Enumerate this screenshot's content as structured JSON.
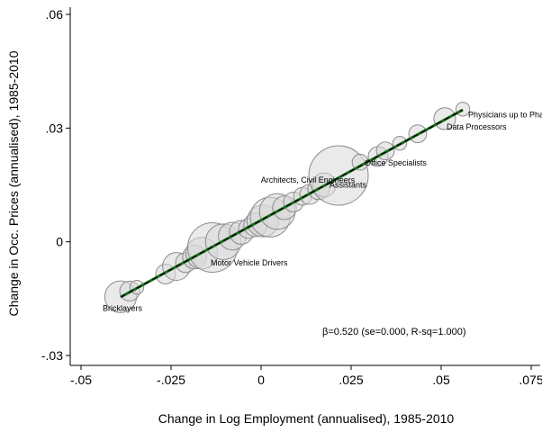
{
  "chart_data": {
    "type": "scatter",
    "title": "",
    "xlabel": "Change in Log Employment (annualised), 1985-2010",
    "ylabel": "Change in Occ. Prices (annualised), 1985-2010",
    "xlim": [
      -0.05,
      0.075
    ],
    "ylim": [
      -0.03,
      0.06
    ],
    "x_ticks": [
      -0.05,
      -0.025,
      0,
      0.025,
      0.05,
      0.075
    ],
    "x_tick_labels": [
      "-.05",
      "-.025",
      "0",
      ".025",
      ".05",
      ".075"
    ],
    "y_ticks": [
      -0.03,
      0,
      0.03,
      0.06
    ],
    "y_tick_labels": [
      "-.03",
      "0",
      ".03",
      ".06"
    ],
    "grid": false,
    "colors": {
      "marker_fill": "#d9d9d9",
      "marker_edge": "#8c8c8c",
      "fit_line": "#1a6b1a",
      "fit_line_dash": "#000000"
    },
    "fit_line": {
      "slope": 0.52,
      "intercept": 0.0057,
      "x_range": [
        -0.039,
        0.056
      ]
    },
    "annotation": "β=0.520 (se=0.000, R-sq=1.000)",
    "points": [
      {
        "x": -0.039,
        "y": -0.0145,
        "s": 1.6,
        "label": "Bricklayers"
      },
      {
        "x": -0.0365,
        "y": -0.013,
        "s": 1.0
      },
      {
        "x": -0.0345,
        "y": -0.012,
        "s": 0.7
      },
      {
        "x": -0.0265,
        "y": -0.0085,
        "s": 1.0
      },
      {
        "x": -0.0235,
        "y": -0.0065,
        "s": 1.4
      },
      {
        "x": -0.021,
        "y": -0.0055,
        "s": 1.0
      },
      {
        "x": -0.0185,
        "y": -0.004,
        "s": 1.2
      },
      {
        "x": -0.0165,
        "y": -0.003,
        "s": 1.6
      },
      {
        "x": -0.0135,
        "y": -0.0015,
        "s": 2.5,
        "label": "Motor Vehicle Drivers"
      },
      {
        "x": -0.0105,
        "y": 0.0,
        "s": 1.8
      },
      {
        "x": -0.008,
        "y": 0.0015,
        "s": 1.4
      },
      {
        "x": -0.0055,
        "y": 0.0025,
        "s": 1.2
      },
      {
        "x": -0.0035,
        "y": 0.0035,
        "s": 1.0
      },
      {
        "x": -0.0015,
        "y": 0.0045,
        "s": 1.2
      },
      {
        "x": 0.0005,
        "y": 0.0055,
        "s": 1.6
      },
      {
        "x": 0.0025,
        "y": 0.0065,
        "s": 2.0
      },
      {
        "x": 0.0045,
        "y": 0.008,
        "s": 1.8
      },
      {
        "x": 0.0065,
        "y": 0.009,
        "s": 1.2
      },
      {
        "x": 0.009,
        "y": 0.0105,
        "s": 1.0
      },
      {
        "x": 0.0115,
        "y": 0.012,
        "s": 0.9,
        "label": "Architects, Civil Engineers"
      },
      {
        "x": 0.0135,
        "y": 0.0125,
        "s": 1.0
      },
      {
        "x": 0.016,
        "y": 0.014,
        "s": 1.1
      },
      {
        "x": 0.0175,
        "y": 0.015,
        "s": 1.2,
        "label": "Assistants"
      },
      {
        "x": 0.0215,
        "y": 0.0175,
        "s": 3.0
      },
      {
        "x": 0.0275,
        "y": 0.021,
        "s": 0.8,
        "label": "Office Specialists"
      },
      {
        "x": 0.0325,
        "y": 0.0225,
        "s": 1.0
      },
      {
        "x": 0.0345,
        "y": 0.024,
        "s": 0.9
      },
      {
        "x": 0.0385,
        "y": 0.026,
        "s": 0.7
      },
      {
        "x": 0.0435,
        "y": 0.0285,
        "s": 0.9
      },
      {
        "x": 0.051,
        "y": 0.0325,
        "s": 1.1,
        "label": "Data Processors"
      },
      {
        "x": 0.056,
        "y": 0.035,
        "s": 0.7,
        "label": "Physicians up to Pharmac"
      }
    ]
  }
}
